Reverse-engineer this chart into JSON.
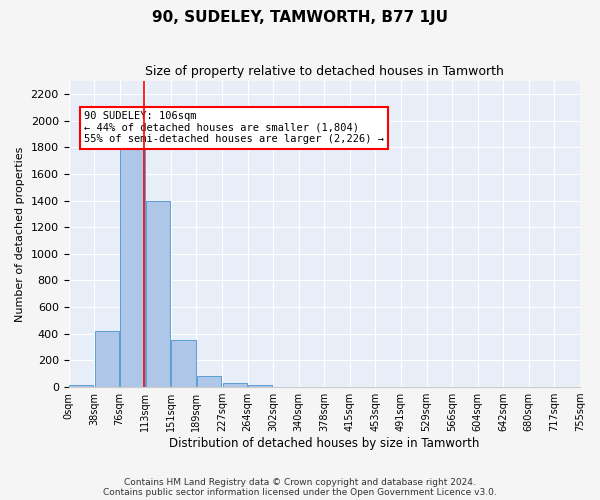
{
  "title": "90, SUDELEY, TAMWORTH, B77 1JU",
  "subtitle": "Size of property relative to detached houses in Tamworth",
  "xlabel": "Distribution of detached houses by size in Tamworth",
  "ylabel": "Number of detached properties",
  "bar_color": "#aec6e8",
  "bar_edge_color": "#5a9fd4",
  "background_color": "#e8eef8",
  "grid_color": "#ffffff",
  "bin_labels": [
    "0sqm",
    "38sqm",
    "76sqm",
    "113sqm",
    "151sqm",
    "189sqm",
    "227sqm",
    "264sqm",
    "302sqm",
    "340sqm",
    "378sqm",
    "415sqm",
    "453sqm",
    "491sqm",
    "529sqm",
    "566sqm",
    "604sqm",
    "642sqm",
    "680sqm",
    "717sqm",
    "755sqm"
  ],
  "bar_heights": [
    15,
    420,
    1810,
    1400,
    350,
    80,
    30,
    15,
    0,
    0,
    0,
    0,
    0,
    0,
    0,
    0,
    0,
    0,
    0,
    0
  ],
  "ylim": [
    0,
    2300
  ],
  "yticks": [
    0,
    200,
    400,
    600,
    800,
    1000,
    1200,
    1400,
    1600,
    1800,
    2000,
    2200
  ],
  "annotation_text": "90 SUDELEY: 106sqm\n← 44% of detached houses are smaller (1,804)\n55% of semi-detached houses are larger (2,226) →",
  "vline_x": 2.44,
  "footer_line1": "Contains HM Land Registry data © Crown copyright and database right 2024.",
  "footer_line2": "Contains public sector information licensed under the Open Government Licence v3.0."
}
